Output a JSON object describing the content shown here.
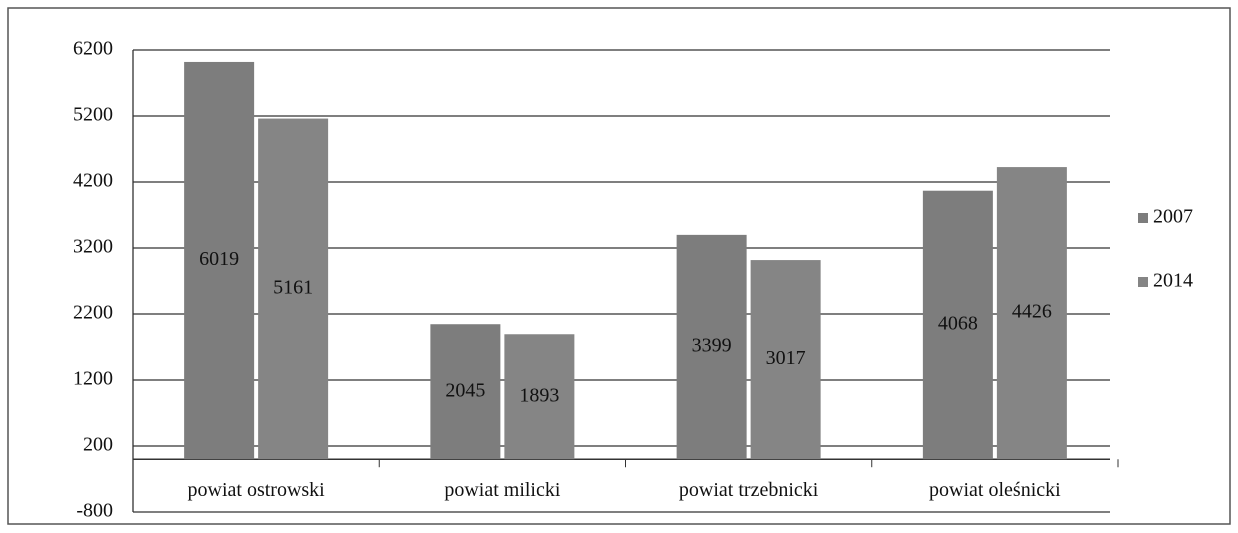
{
  "chart_data": {
    "type": "bar",
    "categories": [
      "powiat ostrowski",
      "powiat milicki",
      "powiat trzebnicki",
      "powiat oleśnicki"
    ],
    "series": [
      {
        "name": "2007",
        "color": "#7d7d7d",
        "values": [
          6019,
          2045,
          3399,
          4068
        ]
      },
      {
        "name": "2014",
        "color": "#858585",
        "values": [
          5161,
          1893,
          3017,
          4426
        ]
      }
    ],
    "ylim": [
      -800,
      6200
    ],
    "yticks": [
      -800,
      200,
      1200,
      2200,
      3200,
      4200,
      5200,
      6200
    ],
    "grid": true,
    "legend": "right",
    "data_labels": true
  }
}
